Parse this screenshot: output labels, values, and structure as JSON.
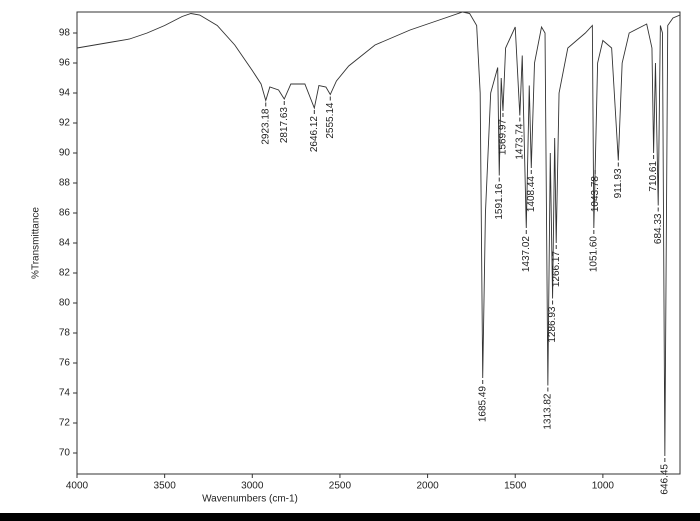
{
  "chart_data": {
    "type": "line",
    "xlabel": "Wavenumbers (cm-1)",
    "ylabel": "%Transmittance",
    "x": [
      4000,
      3900,
      3800,
      3700,
      3600,
      3500,
      3400,
      3350,
      3300,
      3200,
      3100,
      3000,
      2950,
      2923.18,
      2900,
      2850,
      2817.63,
      2780,
      2700,
      2646.12,
      2620,
      2580,
      2555.14,
      2520,
      2450,
      2300,
      2100,
      2000,
      1900,
      1800,
      1760,
      1720,
      1700,
      1685.49,
      1670,
      1640,
      1600,
      1591.16,
      1580,
      1569.97,
      1555,
      1500,
      1473.74,
      1460,
      1437.02,
      1420,
      1408.44,
      1390,
      1350,
      1330,
      1313.82,
      1300,
      1286.93,
      1275,
      1266.17,
      1250,
      1200,
      1150,
      1100,
      1060,
      1051.6,
      1043.78,
      1030,
      1000,
      950,
      911.93,
      890,
      850,
      800,
      750,
      720,
      710.61,
      700,
      684.33,
      672,
      660,
      646.45,
      630,
      600,
      560
    ],
    "series": [
      {
        "color": "#333333",
        "values": [
          97.0,
          97.2,
          97.4,
          97.6,
          98.0,
          98.5,
          99.1,
          99.3,
          99.2,
          98.5,
          97.2,
          95.5,
          94.6,
          93.5,
          94.4,
          94.2,
          93.6,
          94.6,
          94.6,
          93.0,
          94.5,
          94.4,
          93.9,
          94.8,
          95.8,
          97.2,
          98.2,
          98.6,
          99.0,
          99.4,
          99.3,
          98.5,
          94.0,
          75.0,
          86.0,
          94.0,
          95.7,
          88.5,
          95.0,
          92.8,
          97.0,
          98.4,
          92.5,
          96.5,
          85.0,
          94.5,
          89.0,
          96.0,
          98.4,
          98.0,
          74.5,
          90.0,
          80.3,
          91.0,
          84.0,
          94.0,
          97.0,
          97.5,
          98.0,
          98.5,
          85.0,
          89.0,
          96.0,
          97.5,
          97.0,
          89.5,
          96.0,
          98.0,
          98.3,
          98.6,
          97.0,
          90.0,
          96.0,
          86.5,
          98.5,
          98.0,
          69.8,
          98.5,
          99.0,
          99.2
        ]
      }
    ],
    "annotations": [
      2923.18,
      2817.63,
      2646.12,
      2555.14,
      1685.49,
      1591.16,
      1569.97,
      1473.74,
      1437.02,
      1408.44,
      1313.82,
      1286.93,
      1266.17,
      {
        "value": 1051.6,
        "label": "1051.60"
      },
      1043.78,
      911.93,
      710.61,
      684.33,
      646.45
    ],
    "xlim": [
      4000,
      560
    ],
    "ylim": [
      68.6,
      99.4
    ],
    "xticks": [
      4000,
      3500,
      3000,
      2500,
      2000,
      1500,
      1000
    ],
    "yticks": [
      70,
      72,
      74,
      76,
      78,
      80,
      82,
      84,
      86,
      88,
      90,
      92,
      94,
      96,
      98
    ]
  }
}
